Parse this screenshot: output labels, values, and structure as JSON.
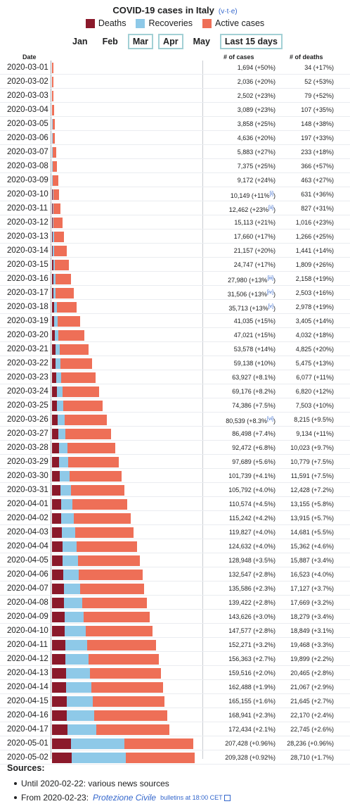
{
  "header": {
    "title": "COVID-19 cases in Italy",
    "vte": "v·t·e"
  },
  "legend": [
    {
      "label": "Deaths",
      "color": "#8b1a2b"
    },
    {
      "label": "Recoveries",
      "color": "#8ec9e8"
    },
    {
      "label": "Active cases",
      "color": "#ee6f57"
    }
  ],
  "months": [
    {
      "label": "Jan",
      "boxed": false
    },
    {
      "label": "Feb",
      "boxed": false
    },
    {
      "label": "Mar",
      "boxed": true
    },
    {
      "label": "Apr",
      "boxed": true
    },
    {
      "label": "May",
      "boxed": false
    },
    {
      "label": "Last 15 days",
      "boxed": true
    }
  ],
  "columns": {
    "date": "Date",
    "cases": "# of cases",
    "deaths": "# of deaths"
  },
  "sources": {
    "heading": "Sources:",
    "item1": "Until 2020-02-22: various news sources",
    "item2_prefix": "From 2020-02-23:",
    "item2_link": "Protezione Civile",
    "item2_suffix": "bulletins at 18:00 CET"
  },
  "chart_data": {
    "type": "bar",
    "stacked": true,
    "orientation": "horizontal",
    "title": "COVID-19 cases in Italy",
    "series": [
      {
        "name": "Deaths",
        "color": "#8b1a2b"
      },
      {
        "name": "Recoveries",
        "color": "#8ec9e8"
      },
      {
        "name": "Active cases",
        "color": "#ee6f57"
      }
    ],
    "rows": [
      {
        "date": "2020-03-01",
        "cases": 1694,
        "deaths": 34,
        "recoveries": 83,
        "cases_label": "1,694 (+50%)",
        "deaths_label": "34 (+17%)"
      },
      {
        "date": "2020-03-02",
        "cases": 2036,
        "deaths": 52,
        "recoveries": 149,
        "cases_label": "2,036 (+20%)",
        "deaths_label": "52 (+53%)"
      },
      {
        "date": "2020-03-03",
        "cases": 2502,
        "deaths": 79,
        "recoveries": 160,
        "cases_label": "2,502 (+23%)",
        "deaths_label": "79 (+52%)"
      },
      {
        "date": "2020-03-04",
        "cases": 3089,
        "deaths": 107,
        "recoveries": 276,
        "cases_label": "3,089 (+23%)",
        "deaths_label": "107 (+35%)"
      },
      {
        "date": "2020-03-05",
        "cases": 3858,
        "deaths": 148,
        "recoveries": 414,
        "cases_label": "3,858 (+25%)",
        "deaths_label": "148 (+38%)"
      },
      {
        "date": "2020-03-06",
        "cases": 4636,
        "deaths": 197,
        "recoveries": 523,
        "cases_label": "4,636 (+20%)",
        "deaths_label": "197 (+33%)"
      },
      {
        "date": "2020-03-07",
        "cases": 5883,
        "deaths": 233,
        "recoveries": 589,
        "cases_label": "5,883 (+27%)",
        "deaths_label": "233 (+18%)"
      },
      {
        "date": "2020-03-08",
        "cases": 7375,
        "deaths": 366,
        "recoveries": 622,
        "cases_label": "7,375 (+25%)",
        "deaths_label": "366 (+57%)"
      },
      {
        "date": "2020-03-09",
        "cases": 9172,
        "deaths": 463,
        "recoveries": 724,
        "cases_label": "9,172 (+24%)",
        "deaths_label": "463 (+27%)"
      },
      {
        "date": "2020-03-10",
        "cases": 10149,
        "deaths": 631,
        "recoveries": 1004,
        "cases_label": "10,149 (+11%",
        "cases_note": "[i]",
        "cases_tail": ")",
        "deaths_label": "631 (+36%)"
      },
      {
        "date": "2020-03-11",
        "cases": 12462,
        "deaths": 827,
        "recoveries": 1045,
        "cases_label": "12,462 (+23%",
        "cases_note": "[ii]",
        "cases_tail": ")",
        "deaths_label": "827 (+31%)"
      },
      {
        "date": "2020-03-12",
        "cases": 15113,
        "deaths": 1016,
        "recoveries": 1258,
        "cases_label": "15,113 (+21%)",
        "deaths_label": "1,016 (+23%)"
      },
      {
        "date": "2020-03-13",
        "cases": 17660,
        "deaths": 1266,
        "recoveries": 1439,
        "cases_label": "17,660 (+17%)",
        "deaths_label": "1,266 (+25%)"
      },
      {
        "date": "2020-03-14",
        "cases": 21157,
        "deaths": 1441,
        "recoveries": 1966,
        "cases_label": "21,157 (+20%)",
        "deaths_label": "1,441 (+14%)"
      },
      {
        "date": "2020-03-15",
        "cases": 24747,
        "deaths": 1809,
        "recoveries": 2335,
        "cases_label": "24,747 (+17%)",
        "deaths_label": "1,809 (+26%)"
      },
      {
        "date": "2020-03-16",
        "cases": 27980,
        "deaths": 2158,
        "recoveries": 2749,
        "cases_label": "27,980 (+13%",
        "cases_note": "[iii]",
        "cases_tail": ")",
        "deaths_label": "2,158 (+19%)"
      },
      {
        "date": "2020-03-17",
        "cases": 31506,
        "deaths": 2503,
        "recoveries": 2941,
        "cases_label": "31,506 (+13%",
        "cases_note": "[iv]",
        "cases_tail": ")",
        "deaths_label": "2,503 (+16%)"
      },
      {
        "date": "2020-03-18",
        "cases": 35713,
        "deaths": 2978,
        "recoveries": 4025,
        "cases_label": "35,713 (+13%",
        "cases_note": "[v]",
        "cases_tail": ")",
        "deaths_label": "2,978 (+19%)"
      },
      {
        "date": "2020-03-19",
        "cases": 41035,
        "deaths": 3405,
        "recoveries": 4440,
        "cases_label": "41,035 (+15%)",
        "deaths_label": "3,405 (+14%)"
      },
      {
        "date": "2020-03-20",
        "cases": 47021,
        "deaths": 4032,
        "recoveries": 5129,
        "cases_label": "47,021 (+15%)",
        "deaths_label": "4,032 (+18%)"
      },
      {
        "date": "2020-03-21",
        "cases": 53578,
        "deaths": 4825,
        "recoveries": 6072,
        "cases_label": "53,578 (+14%)",
        "deaths_label": "4,825 (+20%)"
      },
      {
        "date": "2020-03-22",
        "cases": 59138,
        "deaths": 5475,
        "recoveries": 7024,
        "cases_label": "59,138 (+10%)",
        "deaths_label": "5,475 (+13%)"
      },
      {
        "date": "2020-03-23",
        "cases": 63927,
        "deaths": 6077,
        "recoveries": 7432,
        "cases_label": "63,927 (+8.1%)",
        "deaths_label": "6,077 (+11%)"
      },
      {
        "date": "2020-03-24",
        "cases": 69176,
        "deaths": 6820,
        "recoveries": 8326,
        "cases_label": "69,176 (+8.2%)",
        "deaths_label": "6,820 (+12%)"
      },
      {
        "date": "2020-03-25",
        "cases": 74386,
        "deaths": 7503,
        "recoveries": 9362,
        "cases_label": "74,386 (+7.5%)",
        "deaths_label": "7,503 (+10%)"
      },
      {
        "date": "2020-03-26",
        "cases": 80539,
        "deaths": 8215,
        "recoveries": 10361,
        "cases_label": "80,539 (+8.3%",
        "cases_note": "[vi]",
        "cases_tail": ")",
        "deaths_label": "8,215 (+9.5%)"
      },
      {
        "date": "2020-03-27",
        "cases": 86498,
        "deaths": 9134,
        "recoveries": 10950,
        "cases_label": "86,498 (+7.4%)",
        "deaths_label": "9,134 (+11%)"
      },
      {
        "date": "2020-03-28",
        "cases": 92472,
        "deaths": 10023,
        "recoveries": 12384,
        "cases_label": "92,472 (+6.8%)",
        "deaths_label": "10,023 (+9.7%)"
      },
      {
        "date": "2020-03-29",
        "cases": 97689,
        "deaths": 10779,
        "recoveries": 13030,
        "cases_label": "97,689 (+5.6%)",
        "deaths_label": "10,779 (+7.5%)"
      },
      {
        "date": "2020-03-30",
        "cases": 101739,
        "deaths": 11591,
        "recoveries": 14620,
        "cases_label": "101,739 (+4.1%)",
        "deaths_label": "11,591 (+7.5%)"
      },
      {
        "date": "2020-03-31",
        "cases": 105792,
        "deaths": 12428,
        "recoveries": 15729,
        "cases_label": "105,792 (+4.0%)",
        "deaths_label": "12,428 (+7.2%)"
      },
      {
        "date": "2020-04-01",
        "cases": 110574,
        "deaths": 13155,
        "recoveries": 16847,
        "cases_label": "110,574 (+4.5%)",
        "deaths_label": "13,155 (+5.8%)"
      },
      {
        "date": "2020-04-02",
        "cases": 115242,
        "deaths": 13915,
        "recoveries": 18278,
        "cases_label": "115,242 (+4.2%)",
        "deaths_label": "13,915 (+5.7%)"
      },
      {
        "date": "2020-04-03",
        "cases": 119827,
        "deaths": 14681,
        "recoveries": 19758,
        "cases_label": "119,827 (+4.0%)",
        "deaths_label": "14,681 (+5.5%)"
      },
      {
        "date": "2020-04-04",
        "cases": 124632,
        "deaths": 15362,
        "recoveries": 20996,
        "cases_label": "124,632 (+4.0%)",
        "deaths_label": "15,362 (+4.6%)"
      },
      {
        "date": "2020-04-05",
        "cases": 128948,
        "deaths": 15887,
        "recoveries": 21815,
        "cases_label": "128,948 (+3.5%)",
        "deaths_label": "15,887 (+3.4%)"
      },
      {
        "date": "2020-04-06",
        "cases": 132547,
        "deaths": 16523,
        "recoveries": 22837,
        "cases_label": "132,547 (+2.8%)",
        "deaths_label": "16,523 (+4.0%)"
      },
      {
        "date": "2020-04-07",
        "cases": 135586,
        "deaths": 17127,
        "recoveries": 24392,
        "cases_label": "135,586 (+2.3%)",
        "deaths_label": "17,127 (+3.7%)"
      },
      {
        "date": "2020-04-08",
        "cases": 139422,
        "deaths": 17669,
        "recoveries": 26491,
        "cases_label": "139,422 (+2.8%)",
        "deaths_label": "17,669 (+3.2%)"
      },
      {
        "date": "2020-04-09",
        "cases": 143626,
        "deaths": 18279,
        "recoveries": 28470,
        "cases_label": "143,626 (+3.0%)",
        "deaths_label": "18,279 (+3.4%)"
      },
      {
        "date": "2020-04-10",
        "cases": 147577,
        "deaths": 18849,
        "recoveries": 30455,
        "cases_label": "147,577 (+2.8%)",
        "deaths_label": "18,849 (+3.1%)"
      },
      {
        "date": "2020-04-11",
        "cases": 152271,
        "deaths": 19468,
        "recoveries": 32534,
        "cases_label": "152,271 (+3.2%)",
        "deaths_label": "19,468 (+3.3%)"
      },
      {
        "date": "2020-04-12",
        "cases": 156363,
        "deaths": 19899,
        "recoveries": 34211,
        "cases_label": "156,363 (+2.7%)",
        "deaths_label": "19,899 (+2.2%)"
      },
      {
        "date": "2020-04-13",
        "cases": 159516,
        "deaths": 20465,
        "recoveries": 35435,
        "cases_label": "159,516 (+2.0%)",
        "deaths_label": "20,465 (+2.8%)"
      },
      {
        "date": "2020-04-14",
        "cases": 162488,
        "deaths": 21067,
        "recoveries": 37130,
        "cases_label": "162,488 (+1.9%)",
        "deaths_label": "21,067 (+2.9%)"
      },
      {
        "date": "2020-04-15",
        "cases": 165155,
        "deaths": 21645,
        "recoveries": 38092,
        "cases_label": "165,155 (+1.6%)",
        "deaths_label": "21,645 (+2.7%)"
      },
      {
        "date": "2020-04-16",
        "cases": 168941,
        "deaths": 22170,
        "recoveries": 40164,
        "cases_label": "168,941 (+2.3%)",
        "deaths_label": "22,170 (+2.4%)"
      },
      {
        "date": "2020-04-17",
        "cases": 172434,
        "deaths": 22745,
        "recoveries": 42727,
        "cases_label": "172,434 (+2.1%)",
        "deaths_label": "22,745 (+2.6%)"
      },
      {
        "date": "2020-05-01",
        "cases": 207428,
        "deaths": 28236,
        "recoveries": 78249,
        "cases_label": "207,428 (+0.96%)",
        "deaths_label": "28,236 (+0.96%)"
      },
      {
        "date": "2020-05-02",
        "cases": 209328,
        "deaths": 28710,
        "recoveries": 79914,
        "cases_label": "209,328 (+0.92%)",
        "deaths_label": "28,710 (+1.7%)"
      }
    ]
  }
}
